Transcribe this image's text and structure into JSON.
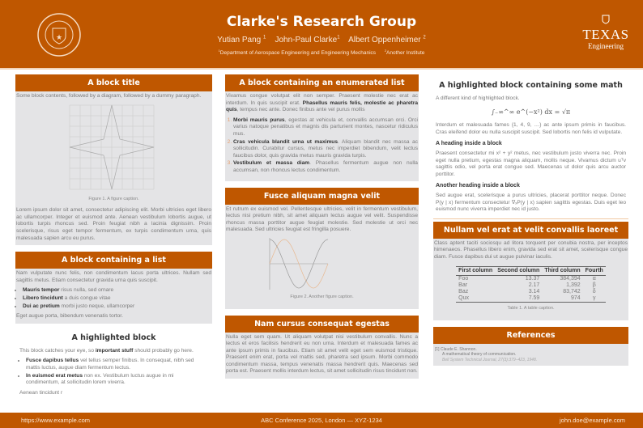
{
  "header": {
    "title": "Clarke's Research Group",
    "authors": [
      {
        "name": "Yutian Pang",
        "sup": "1"
      },
      {
        "name": "John-Paul Clarke",
        "sup": "1"
      },
      {
        "name": "Albert Oppenheimer",
        "sup": "2"
      }
    ],
    "affiliations": [
      {
        "sup": "1",
        "name": "Department of Aerospace Engineering and Engineering Mechanics"
      },
      {
        "sup": "2",
        "name": "Another Institute"
      }
    ],
    "seal_text": "THE UNIVERSITY OF TEXAS AT AUSTIN",
    "logo": {
      "line1": "TEXAS",
      "line2": "Engineering"
    }
  },
  "brand_color": "#bf5700",
  "col1": {
    "block1": {
      "title": "A block title",
      "intro": "Some block contents, followed by a diagram, followed by a dummy paragraph.",
      "caption": "Figure 1. A figure caption.",
      "para": "Lorem ipsum dolor sit amet, consectetur adipiscing elit. Morbi ultricies eget libero ac ullamcorper. Integer et euismod ante. Aenean vestibulum lobortis augue, ut lobortis turpis rhoncus sed. Proin feugiat nibh a lacinia dignissim. Proin scelerisque, risus eget tempor fermentum, ex turpis condimentum urna, quis malesuada sapien arcu eu purus."
    },
    "block2": {
      "title": "A block containing a list",
      "intro": "Nam vulputate nunc felis, non condimentum lacus porta ultrices. Nullam sed sagittis metus. Etiam consectetur gravida urna quis suscipit.",
      "items": [
        {
          "bold": "Mauris tempor",
          "text": " risus nulla, sed ornare"
        },
        {
          "bold": "Libero tincidunt",
          "text": " a duis congue vitae"
        },
        {
          "bold": "Dui ac pretium",
          "text": " morbi justo neque, ullamcorper"
        }
      ],
      "outro": "Eget augue porta, bibendum venenatis tortor."
    },
    "block3": {
      "title": "A highlighted block",
      "intro_a": "This block catches your eye, so ",
      "intro_b": "important stuff",
      "intro_c": " should probably go here.",
      "items": [
        {
          "bold": "Fusce dapibus tellus",
          "text": " vel tellus semper finibus. In consequat, nibh sed mattis luctus, augue diam fermentum lectus."
        },
        {
          "bold": "In euismod erat metus",
          "text": " non ex. Vestibulum luctus augue in mi condimentum, at sollicitudin lorem viverra."
        }
      ],
      "outro": "Aenean tincidunt r"
    }
  },
  "col2": {
    "block1": {
      "title": "A block containing an enumerated list",
      "intro_a": "Vivamus congue volutpat elit non semper. Praesent molestie nec erat ac interdum. In quis suscipit erat. ",
      "intro_b": "Phasellus mauris felis, molestie ac pharetra quis",
      "intro_c": ", tempus nec ante. Donec finibus ante vel purus mollis",
      "items": [
        {
          "bold": "Morbi mauris purus",
          "text": ", egestas at vehicula et, convallis accumsan orci. Orci varius natoque penatibus et magnis dis parturient montes, nascetur ridiculus mus."
        },
        {
          "bold": "Cras vehicula blandit urna ut maximus",
          "text": ". Aliquam blandit nec massa ac sollicitudin. Curabitur cursus, metus nec imperdiet bibendum, velit lectus faucibus dolor, quis gravida metus mauris gravida turpis."
        },
        {
          "bold": "Vestibulum et massa diam",
          "text": ". Phasellus fermentum augue non nulla accumsan, non rhoncus lectus condimentum."
        }
      ]
    },
    "block2": {
      "title": "Fusce aliquam magna velit",
      "para": "Et rutrum ex euismod vel. Pellentesque ultricies, velit in fermentum vestibulum, lectus nisi pretium nibh, sit amet aliquam lectus augue vel velit. Suspendisse rhoncus massa porttitor augue feugiat molestie. Sed molestie ut orci nec malesuada. Sed ultricies feugiat est fringilla posuere.",
      "caption": "Figure 2. Another figure caption."
    },
    "block3": {
      "title": "Nam cursus consequat egestas",
      "para": "Nulla eget sem quam. Ut aliquam volutpat nisi vestibulum convallis. Nunc a lectus et eros facilisis hendrerit eu non urna. Interdum et malesuada fames ac ante ipsum primis in faucibus. Etiam sit amet velit eget sem euismod tristique. Praesent enim erat, porta vel mattis sed, pharetra sed ipsum. Morbi commodo condimentum massa, tempus venenatis massa hendrerit quis. Maecenas sed porta est. Praesent mollis interdum lectus, sit amet sollicitudin risus tincidunt non."
    }
  },
  "col3": {
    "block1": {
      "title": "A highlighted block containing some math",
      "intro": "A different kind of highlighted block.",
      "equation": "∫₋∞^∞ e^(−x²) dx = √π",
      "para1": "Interdum et malesuada fames {1, 4, 9, …} ac ante ipsum primis in faucibus. Cras eleifend dolor eu nulla suscipit suscipit. Sed lobortis non felis id vulputate.",
      "h1": "A heading inside a block",
      "para2": "Praesent consectetur mi x² + y² metus, nec vestibulum justo viverra nec. Proin eget nulla pretium, egestas magna aliquam, mollis neque. Vivamus dictum uᵀv sagittis odio, vel porta erat congue sed. Maecenas ut dolor quis arcu auctor porttitor.",
      "h2": "Another heading inside a block",
      "para3": "Sed augue erat, scelerisque a purus ultricies, placerat porttitor neque. Donec P(y | x) fermentum consectetur ∇ₓP(y | x) sapien sagittis egestas. Duis eget leo euismod nunc viverra imperdiet nec id justo."
    },
    "block2": {
      "title": "Nullam vel erat at velit convallis laoreet",
      "para": "Class aptent taciti sociosqu ad litora torquent per conubia nostra, per inceptos himenaeos. Phasellus libero enim, gravida sed erat sit amet, scelerisque congue diam. Fusce dapibus dui ut augue pulvinar iaculis.",
      "table": {
        "headers": [
          "First column",
          "Second column",
          "Third column",
          "Fourth"
        ],
        "rows": [
          [
            "Foo",
            "13.37",
            "384,394",
            "α"
          ],
          [
            "Bar",
            "2.17",
            "1,392",
            "β"
          ],
          [
            "Baz",
            "3.14",
            "83,742",
            "δ"
          ],
          [
            "Qux",
            "7.59",
            "974",
            "γ"
          ]
        ]
      },
      "caption": "Table 1. A table caption."
    },
    "block3": {
      "title": "References",
      "ref_num": "[1]",
      "ref_author": "Claude E. Shannon.",
      "ref_title": "A mathematical theory of communication.",
      "ref_journal": "Bell System Technical Journal, 27(3):379–423, 1948."
    }
  },
  "footer": {
    "left": "https://www.example.com",
    "center": "ABC Conference 2025, London — XYZ-1234",
    "right": "john.doe@example.com"
  }
}
